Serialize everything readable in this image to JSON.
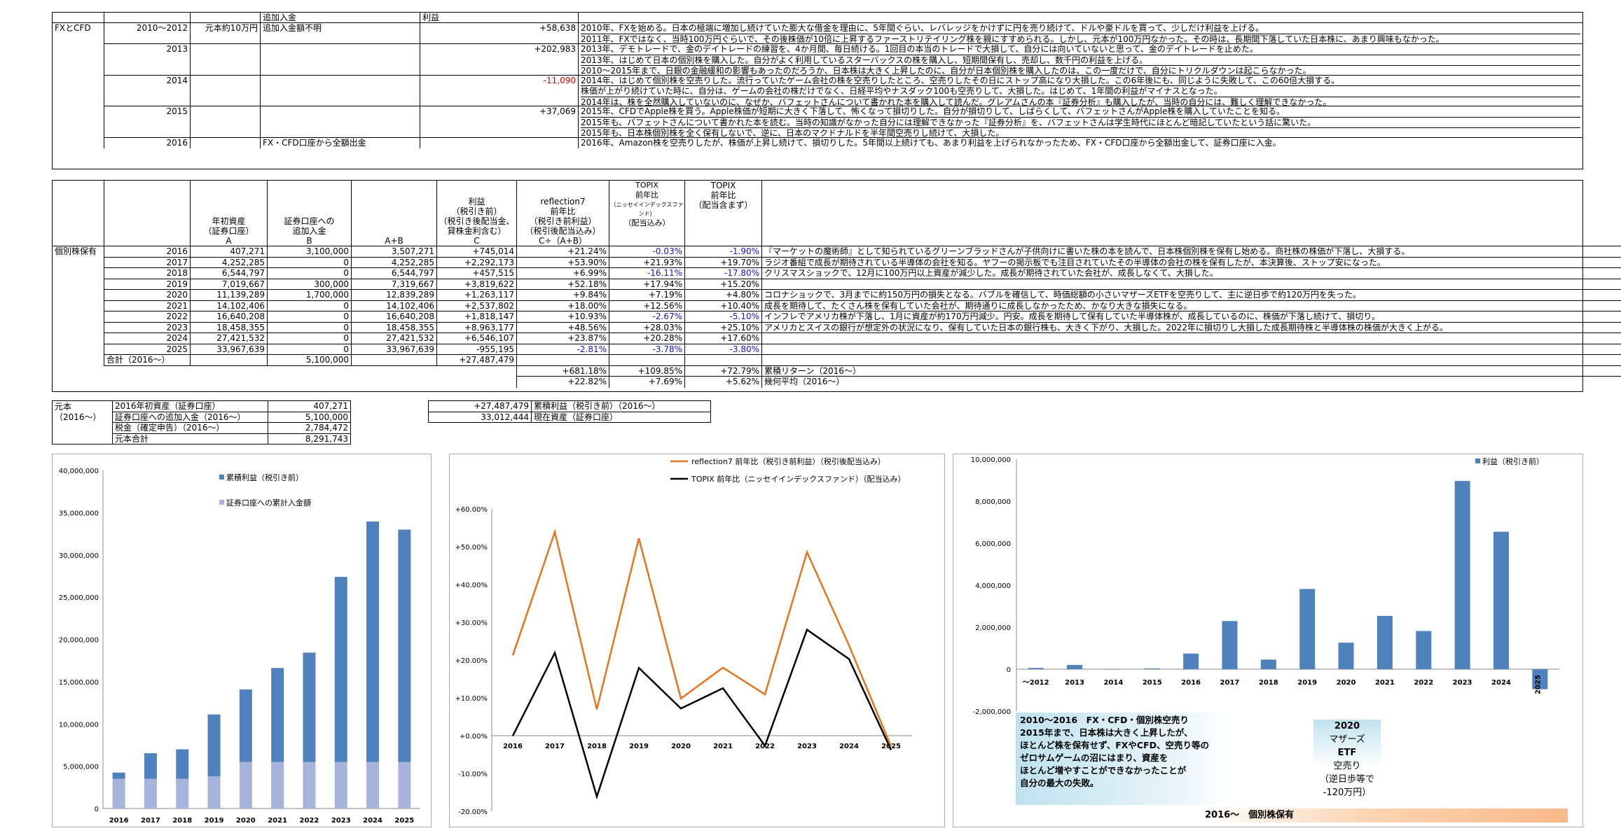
{
  "fx": {
    "header": {
      "add": "追加入金",
      "profit": "利益"
    },
    "label": "FXとCFD",
    "rows": [
      {
        "year": "2010～2012",
        "capital": "元本約10万円",
        "add": "追加入金額不明",
        "profit": "+58,638",
        "neg": false,
        "notes": [
          "2010年、FXを始める。日本の極端に増加し続けていた膨大な借金を理由に、5年間ぐらい、レバレッジをかけずに円を売り続けて、ドルや豪ドルを買って、少しだけ利益を上げる。",
          "2011年、FXではなく、当時100万円ぐらいで、その後株価が10倍に上昇するファーストリテイリング株を親にすすめられる。しかし、元本が100万円なかった。その時は、長期間下落していた日本株に、あまり興味もなかった。"
        ]
      },
      {
        "year": "2013",
        "capital": "",
        "add": "",
        "profit": "+202,983",
        "neg": false,
        "notes": [
          "2013年、デモトレードで、金のデイトレードの練習を、4か月間、毎日続ける。1回目の本当のトレードで大損して、自分には向いていないと思って、金のデイトレードを止めた。",
          "2013年、はじめて日本の個別株を購入した。自分がよく利用しているスターバックスの株を購入し、短期間保有し、売却し、数千円の利益を上げる。",
          "2010～2015年まで、日銀の金融緩和の影響もあったのだろうか、日本株は大きく上昇したのに、自分が日本個別株を購入したのは、この一度だけで、自分にトリクルダウンは起こらなかった。"
        ]
      },
      {
        "year": "2014",
        "capital": "",
        "add": "",
        "profit": "-11,090",
        "neg": true,
        "notes": [
          "2014年、はじめて個別株を空売りした。流行っていたゲーム会社の株を空売りしたところ、空売りしたその日にストップ高になり大損した。この6年後にも、同じように失敗して、この60倍大損する。",
          "株価が上がり続けていた時に、自分は、ゲームの会社の株だけでなく、日経平均やナスダック100も空売りして、大損した。はじめて、1年間の利益がマイナスとなった。",
          "2014年は、株を全然購入していないのに、なぜか、バフェットさんについて書かれた本を購入して読んだ。グレアムさんの本『証券分析』も購入したが、当時の自分には、難しく理解できなかった。"
        ]
      },
      {
        "year": "2015",
        "capital": "",
        "add": "",
        "profit": "+37,069",
        "neg": false,
        "notes": [
          "2015年、CFDでApple株を買う。Apple株価が短期に大きく下落して、怖くなって損切りした。自分が損切りして、しばらくして、バフェットさんがApple株を購入していたことを知る。",
          "2015年も、バフェットさんについて書かれた本を読む。当時の知識がなかった自分には理解できなかった『証券分析』を、バフェットさんは学生時代にほとんど暗記していたという話に驚いた。",
          "2015年も、日本株個別株を全く保有しないで、逆に、日本のマクドナルドを半年間空売りし続けて、大損した。"
        ]
      },
      {
        "year": "2016",
        "capital": "",
        "add": "FX・CFD口座から全額出金",
        "profit": "",
        "neg": false,
        "notes": [
          "2016年、Amazon株を空売りしたが、株価が上昇し続けて、損切りした。5年間以上続けても、あまり利益を上げられなかったため、FX・CFD口座から全額出金して、証券口座に入金。"
        ]
      }
    ]
  },
  "stock": {
    "label": "個別株保有",
    "headers": {
      "a": [
        "年初資産",
        "（証券口座）",
        "A"
      ],
      "b": [
        "証券口座への",
        "追加入金",
        "B"
      ],
      "ab": [
        "A+B"
      ],
      "c": [
        "利益",
        "（税引き前）",
        "（税引き後配当金、",
        "貸株金利含む）",
        "C"
      ],
      "d": [
        "reflection7",
        "前年比",
        "（税引き前利益）",
        "（税引後配当込み）",
        "C÷（A+B）"
      ],
      "e": [
        "TOPIX",
        "前年比",
        "（ニッセイインデックスファンド）",
        "（配当込み）"
      ],
      "f": [
        "TOPIX",
        "前年比",
        "（配当含まず）"
      ]
    },
    "rows": [
      {
        "year": "2016",
        "a": "407,271",
        "b": "3,100,000",
        "ab": "3,507,271",
        "c": "+745,014",
        "d": "+21.24%",
        "e": "-0.03%",
        "f": "-1.90%",
        "de": false,
        "ee": true,
        "fe": true,
        "note": "『マーケットの魔術師』として知られているグリーンブラッドさんが子供向けに書いた株の本を読んで、日本株個別株を保有し始める。商社株の株価が下落し、大損する。"
      },
      {
        "year": "2017",
        "a": "4,252,285",
        "b": "0",
        "ab": "4,252,285",
        "c": "+2,292,173",
        "d": "+53.90%",
        "e": "+21.93%",
        "f": "+19.70%",
        "de": false,
        "ee": false,
        "fe": false,
        "note": "ラジオ番組で成長が期待されている半導体の会社を知る。ヤフーの掲示板でも注目されていたその半導体の会社の株を保有したが、本決算後、ストップ安になった。"
      },
      {
        "year": "2018",
        "a": "6,544,797",
        "b": "0",
        "ab": "6,544,797",
        "c": "+457,515",
        "d": "+6.99%",
        "e": "-16.11%",
        "f": "-17.80%",
        "de": false,
        "ee": true,
        "fe": true,
        "note": "クリスマスショックで、12月に100万円以上資産が減少した。成長が期待されていた会社が、成長しなくて、大損した。"
      },
      {
        "year": "2019",
        "a": "7,019,667",
        "b": "300,000",
        "ab": "7,319,667",
        "c": "+3,819,622",
        "d": "+52.18%",
        "e": "+17.94%",
        "f": "+15.20%",
        "de": false,
        "ee": false,
        "fe": false,
        "note": ""
      },
      {
        "year": "2020",
        "a": "11,139,289",
        "b": "1,700,000",
        "ab": "12,839,289",
        "c": "+1,263,117",
        "d": "+9.84%",
        "e": "+7.19%",
        "f": "+4.80%",
        "de": false,
        "ee": false,
        "fe": false,
        "note": "コロナショックで、3月までに約150万円の損失となる。バブルを確信して、時価総額の小さいマザーズETFを空売りして、主に逆日歩で約120万円を失った。"
      },
      {
        "year": "2021",
        "a": "14,102,406",
        "b": "0",
        "ab": "14,102,406",
        "c": "+2,537,802",
        "d": "+18.00%",
        "e": "+12.56%",
        "f": "+10.40%",
        "de": false,
        "ee": false,
        "fe": false,
        "note": "成長を期待して、たくさん株を保有していた会社が、期待通りに成長しなかったため、かなり大きな損失になる。"
      },
      {
        "year": "2022",
        "a": "16,640,208",
        "b": "0",
        "ab": "16,640,208",
        "c": "+1,818,147",
        "d": "+10.93%",
        "e": "-2.67%",
        "f": "-5.10%",
        "de": false,
        "ee": true,
        "fe": true,
        "note": "インフレでアメリカ株が下落し、1月に資産が約170万円減少。円安。成長を期待して保有していた半導体株が、成長しているのに、株価が下落し続けて、損切り。"
      },
      {
        "year": "2023",
        "a": "18,458,355",
        "b": "0",
        "ab": "18,458,355",
        "c": "+8,963,177",
        "d": "+48.56%",
        "e": "+28.03%",
        "f": "+25.10%",
        "de": false,
        "ee": false,
        "fe": false,
        "note": "アメリカとスイスの銀行が想定外の状況になり、保有していた日本の銀行株も、大きく下がり、大損した。2022年に損切りし大損した成長期待株と半導体株の株価が大きく上がる。"
      },
      {
        "year": "2024",
        "a": "27,421,532",
        "b": "0",
        "ab": "27,421,532",
        "c": "+6,546,107",
        "d": "+23.87%",
        "e": "+20.28%",
        "f": "+17.60%",
        "de": false,
        "ee": false,
        "fe": false,
        "note": ""
      },
      {
        "year": "2025",
        "a": "33,967,639",
        "b": "0",
        "ab": "33,967,639",
        "c": "-955,195",
        "d": "-2.81%",
        "e": "-3.78%",
        "f": "-3.80%",
        "de": true,
        "ee": true,
        "fe": true,
        "note": ""
      }
    ],
    "total": {
      "label": "合計（2016～）",
      "b": "5,100,000",
      "c": "+27,487,479"
    },
    "cum": {
      "d": "+681.18%",
      "e": "+109.85%",
      "f": "+72.79%",
      "note": "累積リターン（2016～）"
    },
    "avg": {
      "d": "+22.82%",
      "e": "+7.69%",
      "f": "+5.62%",
      "note": "幾何平均（2016～）"
    }
  },
  "capital": {
    "label": [
      "元本",
      "（2016～）"
    ],
    "rows": [
      {
        "k": "2016年初資産（証券口座）",
        "v": "407,271"
      },
      {
        "k": "証券口座への追加入金（2016～）",
        "v": "5,100,000"
      },
      {
        "k": "税金（確定申告）（2016～）",
        "v": "2,784,472"
      },
      {
        "k": "元本合計",
        "v": "8,291,743"
      }
    ]
  },
  "summary": {
    "rows": [
      {
        "v": "+27,487,479",
        "k": "累積利益（税引き前）（2016～）"
      },
      {
        "v": "33,012,444",
        "k": "現在資産（証券口座）"
      }
    ]
  },
  "chart_data": [
    {
      "type": "bar",
      "stacked": true,
      "categories": [
        "2016",
        "2017",
        "2018",
        "2019",
        "2020",
        "2021",
        "2022",
        "2023",
        "2024",
        "2025"
      ],
      "series": [
        {
          "name": "累積利益（税引き前）",
          "values": [
            745014,
            3037187,
            3494702,
            7314324,
            8577441,
            11115243,
            12933390,
            21896567,
            28442674,
            27487479
          ],
          "color": "#4f81bd"
        },
        {
          "name": "証券口座への累計入金額",
          "values": [
            3507271,
            3507271,
            3507271,
            3807271,
            5507271,
            5507271,
            5507271,
            5507271,
            5507271,
            5507271
          ],
          "color": "#a6b4dc"
        }
      ],
      "yticks": [
        "40,000,000",
        "35,000,000",
        "30,000,000",
        "25,000,000",
        "20,000,000",
        "15,000,000",
        "10,000,000",
        "5,000,000",
        "0"
      ],
      "ylim": [
        0,
        40000000
      ]
    },
    {
      "type": "line",
      "categories": [
        "2016",
        "2017",
        "2018",
        "2019",
        "2020",
        "2021",
        "2022",
        "2023",
        "2024",
        "2025"
      ],
      "series": [
        {
          "name": "reflection7 前年比（税引き前利益）（税引後配当込み）",
          "values": [
            21.24,
            53.9,
            6.99,
            52.18,
            9.84,
            18.0,
            10.93,
            48.56,
            23.87,
            -2.81
          ],
          "color": "#e8731c"
        },
        {
          "name": "TOPIX 前年比（ニッセイインデックスファンド）（配当込み）",
          "values": [
            -0.03,
            21.93,
            -16.11,
            17.94,
            7.19,
            12.56,
            -2.67,
            28.03,
            20.28,
            -3.78
          ],
          "color": "#000000"
        }
      ],
      "yticks": [
        "+60.00%",
        "+50.00%",
        "+40.00%",
        "+30.00%",
        "+20.00%",
        "+10.00%",
        "+0.00%",
        "-10.00%",
        "-20.00%"
      ],
      "ylim": [
        -20,
        60
      ]
    },
    {
      "type": "bar",
      "categories": [
        "～2012",
        "2013",
        "2014",
        "2015",
        "2016",
        "2017",
        "2018",
        "2019",
        "2020",
        "2021",
        "2022",
        "2023",
        "2024",
        "2025"
      ],
      "series": [
        {
          "name": "利益（税引き前）",
          "values": [
            58638,
            202983,
            -11090,
            37069,
            745014,
            2292173,
            457515,
            3819622,
            1263117,
            2537802,
            1818147,
            8963177,
            6546107,
            -955195
          ],
          "color": "#4f81bd"
        }
      ],
      "yticks": [
        "10,000,000",
        "8,000,000",
        "6,000,000",
        "4,000,000",
        "2,000,000",
        "0",
        "-2,000,000"
      ],
      "ylim": [
        -2000000,
        10000000
      ]
    }
  ],
  "annot": {
    "box1": [
      "2010～2016　FX・CFD・個別株空売り",
      "2015年まで、日本株は大きく上昇したが、",
      "ほとんど株を保有せず、FXやCFD、空売り等の",
      "ゼロサムゲームの沼にはまり、資産を",
      "ほとんど増やすことができなかったことが",
      "自分の最大の失敗。"
    ],
    "box2": [
      "2020",
      "マザーズ",
      "ETF",
      "空売り",
      "（逆日歩等で",
      "-120万円）"
    ],
    "box3": "2016～　個別株保有"
  }
}
